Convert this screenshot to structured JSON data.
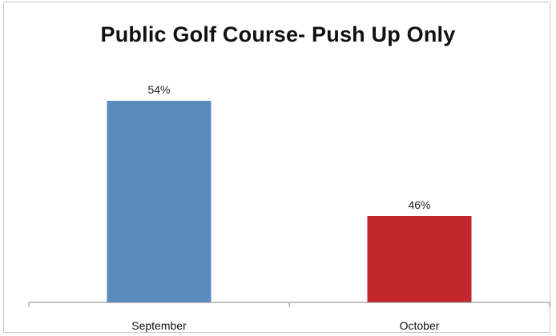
{
  "chart_data": {
    "type": "bar",
    "title": "Public Golf Course- Push Up Only",
    "categories": [
      "September",
      "October"
    ],
    "values": [
      54,
      46
    ],
    "value_labels": [
      "54%",
      "46%"
    ],
    "colors": [
      "#5b8cc0",
      "#c2272d"
    ],
    "xlabel": "",
    "ylabel": "",
    "ylim": [
      40,
      56
    ],
    "grid": false,
    "legend": "none"
  }
}
